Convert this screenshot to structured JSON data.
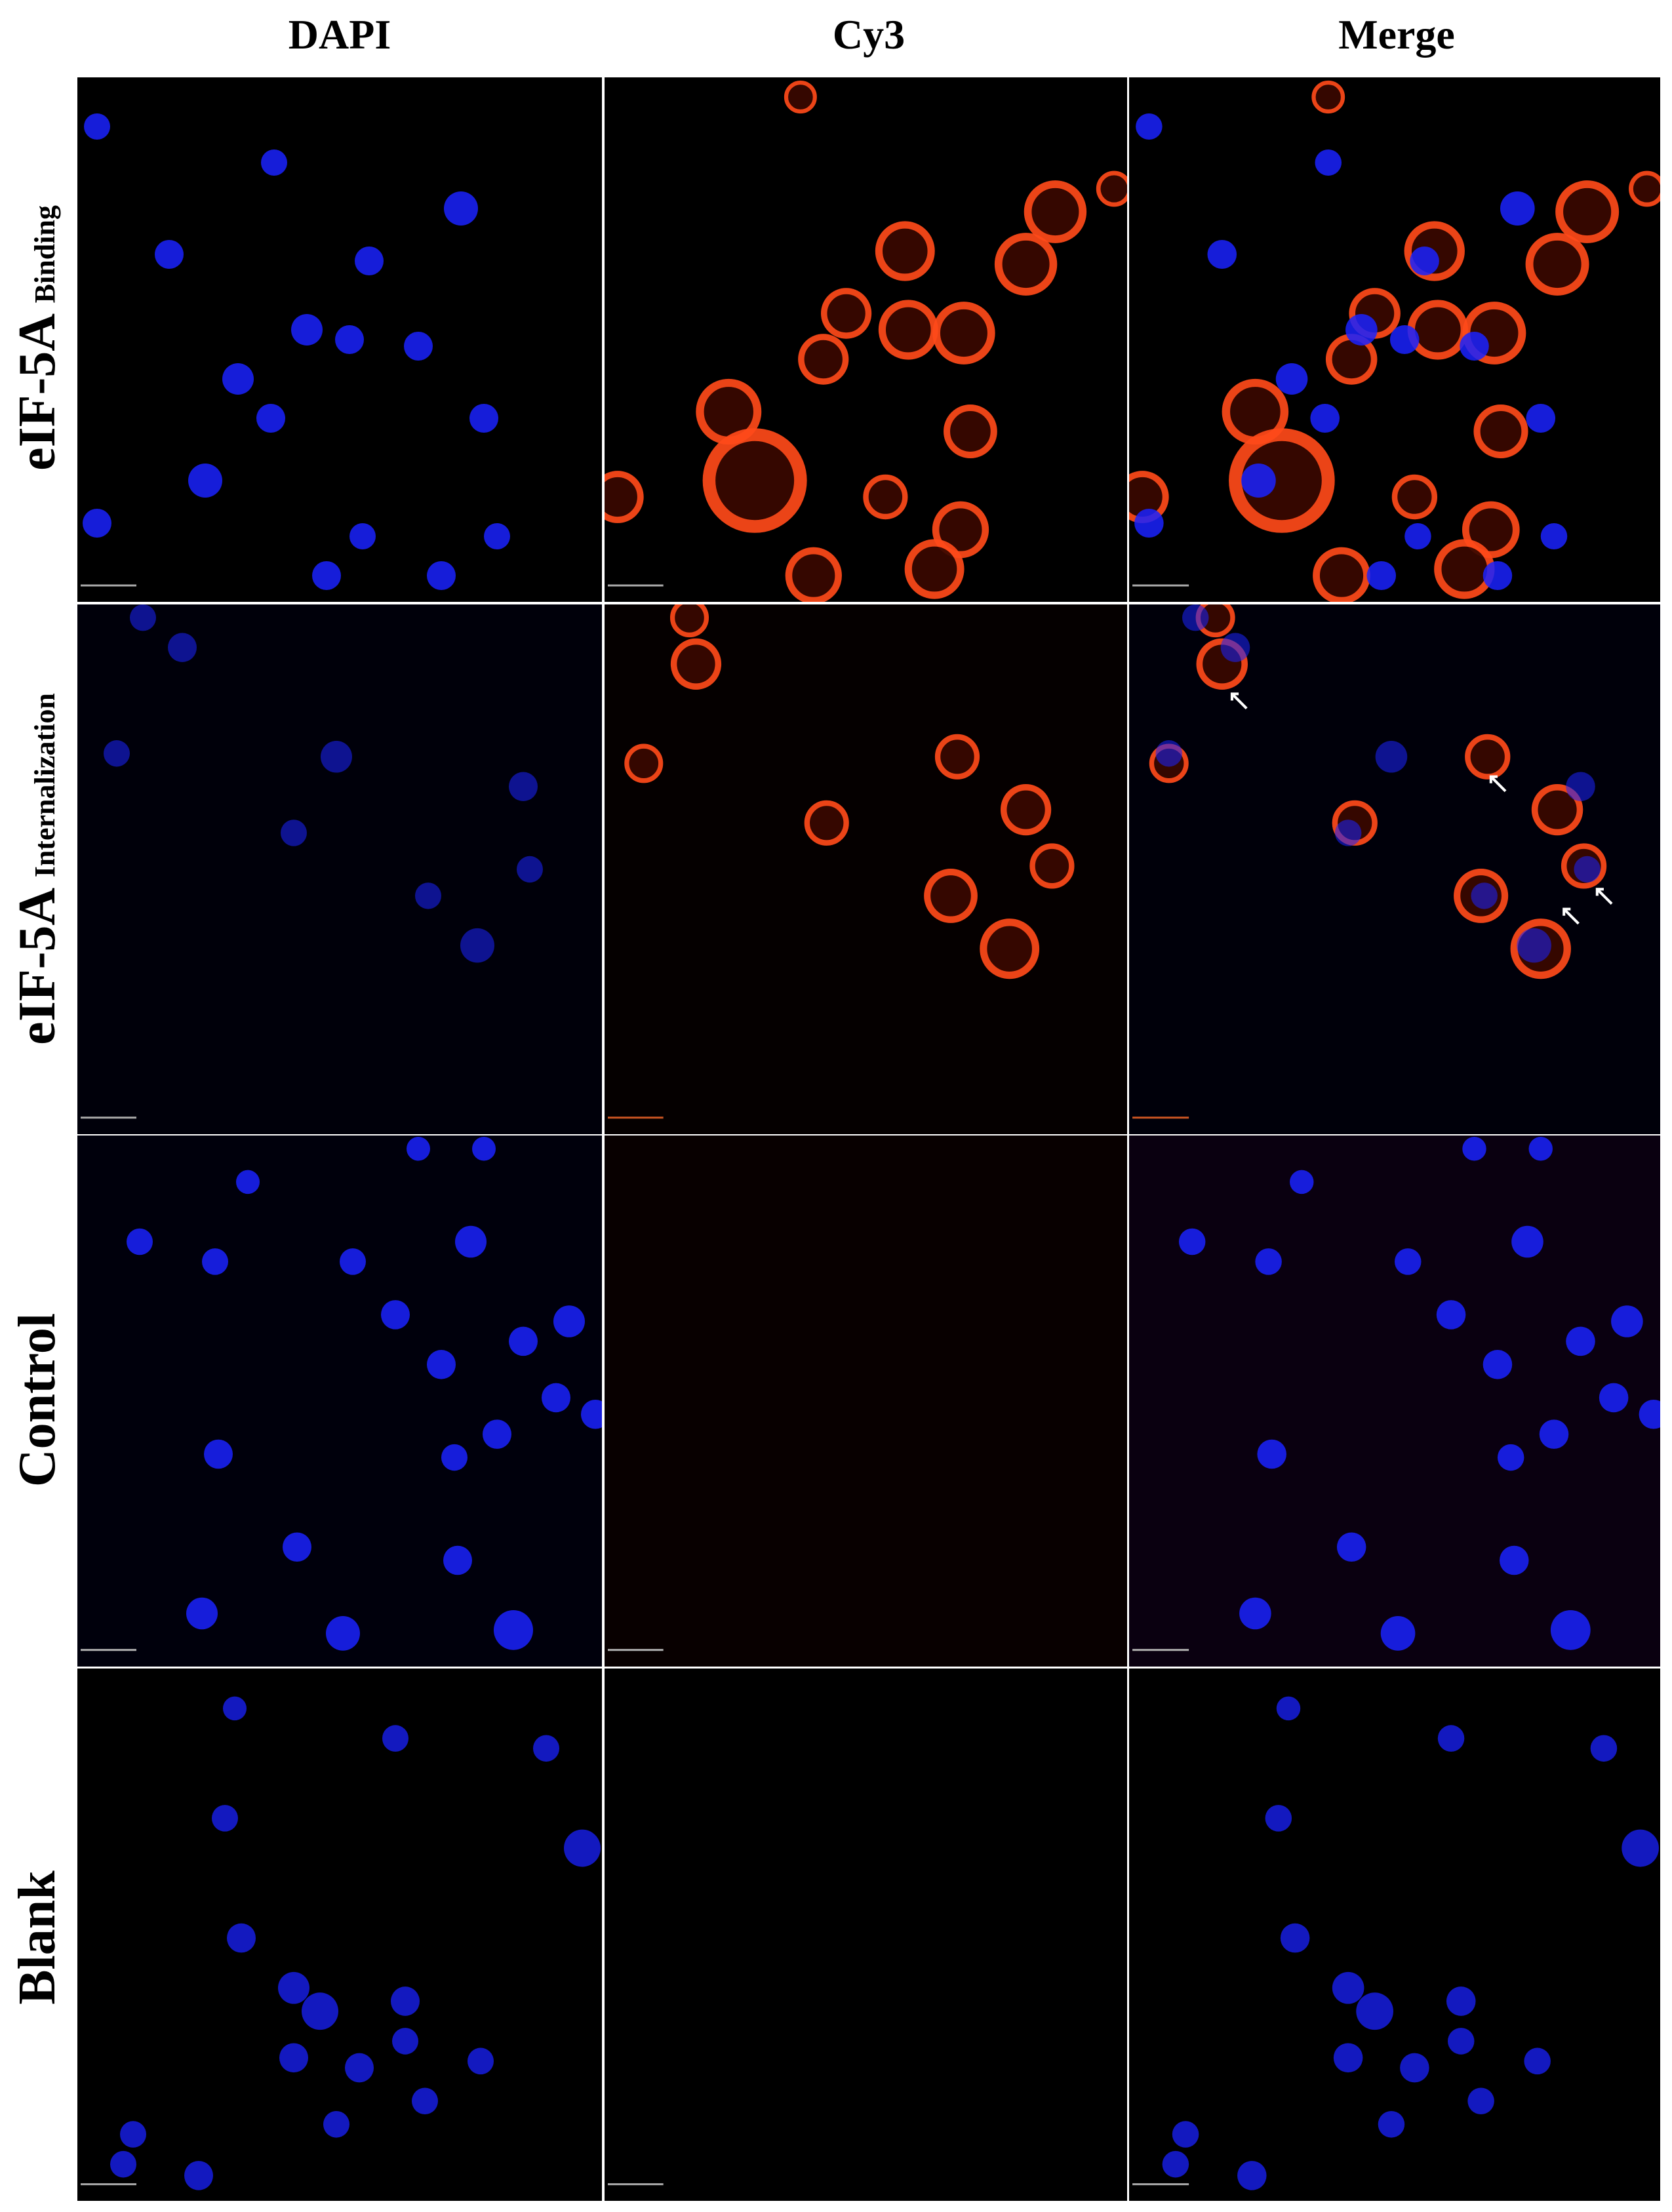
{
  "columns": {
    "dapi": "DAPI",
    "cy3": "Cy3",
    "merge": "Merge"
  },
  "rows": {
    "binding": {
      "main": "eIF-5A",
      "sub": "Binding"
    },
    "internalization": {
      "main": "eIF-5A",
      "sub": "Internalization"
    },
    "control": {
      "main": "Control"
    },
    "blank": {
      "main": "Blank"
    }
  },
  "colors": {
    "dapi_nucleus": "#1a22ff",
    "cy3_signal": "#ff4a1a",
    "background": "#000000"
  },
  "arrows_in_merge_internalization": 4
}
